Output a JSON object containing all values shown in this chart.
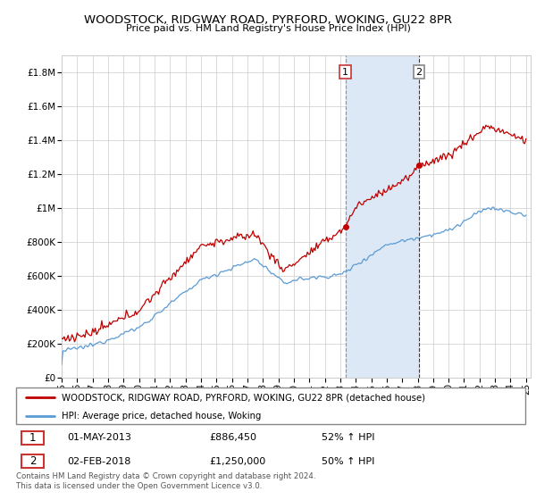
{
  "title": "WOODSTOCK, RIDGWAY ROAD, PYRFORD, WOKING, GU22 8PR",
  "subtitle": "Price paid vs. HM Land Registry's House Price Index (HPI)",
  "ylim": [
    0,
    1900000
  ],
  "yticks": [
    0,
    200000,
    400000,
    600000,
    800000,
    1000000,
    1200000,
    1400000,
    1600000,
    1800000
  ],
  "ytick_labels": [
    "£0",
    "£200K",
    "£400K",
    "£600K",
    "£800K",
    "£1M",
    "£1.2M",
    "£1.4M",
    "£1.6M",
    "£1.8M"
  ],
  "x_start_year": 1995,
  "x_end_year": 2025,
  "hpi_color": "#5b9bd5",
  "price_color": "#c00000",
  "transaction1_date": "01-MAY-2013",
  "transaction1_price": 886450,
  "transaction1_hpi": "52% ↑ HPI",
  "transaction2_date": "02-FEB-2018",
  "transaction2_price": 1250000,
  "transaction2_hpi": "50% ↑ HPI",
  "legend_property": "WOODSTOCK, RIDGWAY ROAD, PYRFORD, WOKING, GU22 8PR (detached house)",
  "legend_hpi": "HPI: Average price, detached house, Woking",
  "footer": "Contains HM Land Registry data © Crown copyright and database right 2024.\nThis data is licensed under the Open Government Licence v3.0.",
  "shaded_region_color": "#dce8f5",
  "sale1_t": 2013.333,
  "sale2_t": 2018.083
}
